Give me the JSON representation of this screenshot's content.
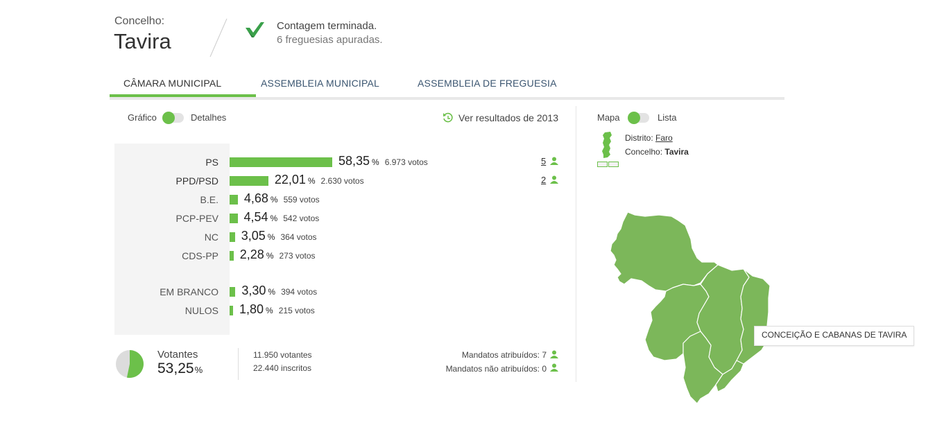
{
  "header": {
    "municipality_label": "Concelho:",
    "municipality_name": "Tavira",
    "status_title": "Contagem terminada.",
    "status_sub": "6 freguesias apuradas.",
    "check_color": "#3aa04a"
  },
  "tabs": [
    {
      "label": "CÂMARA MUNICIPAL",
      "active": true
    },
    {
      "label": "ASSEMBLEIA MUNICIPAL",
      "active": false
    },
    {
      "label": "ASSEMBLEIA DE FREGUESIA",
      "active": false
    }
  ],
  "view_toggle": {
    "left": "Gráfico",
    "right": "Detalhes"
  },
  "history_link": "Ver resultados de 2013",
  "map_toggle": {
    "left": "Mapa",
    "right": "Lista"
  },
  "location": {
    "district_label": "Distrito:",
    "district_value": "Faro",
    "municipality_label": "Concelho:",
    "municipality_value": "Tavira"
  },
  "results": [
    {
      "party": "PS",
      "pct": "58,35",
      "votes": "6.973 votos",
      "value": 58.35,
      "mandates": "5"
    },
    {
      "party": "PPD/PSD",
      "pct": "22,01",
      "votes": "2.630 votos",
      "value": 22.01,
      "mandates": "2"
    },
    {
      "party": "B.E.",
      "pct": "4,68",
      "votes": "559 votos",
      "value": 4.68
    },
    {
      "party": "PCP-PEV",
      "pct": "4,54",
      "votes": "542 votos",
      "value": 4.54
    },
    {
      "party": "NC",
      "pct": "3,05",
      "votes": "364 votos",
      "value": 3.05
    },
    {
      "party": "CDS-PP",
      "pct": "2,28",
      "votes": "273 votos",
      "value": 2.28
    }
  ],
  "blank_null": [
    {
      "party": "EM BRANCO",
      "pct": "3,30",
      "votes": "394 votos",
      "value": 3.3
    },
    {
      "party": "NULOS",
      "pct": "1,80",
      "votes": "215 votos",
      "value": 1.8
    }
  ],
  "pct_unit": "%",
  "turnout": {
    "label": "Votantes",
    "pct": "53,25",
    "value": 53.25,
    "voters": "11.950 votantes",
    "registered": "22.440 inscritos"
  },
  "mandates_summary": {
    "assigned": "Mandatos atribuídos: 7",
    "unassigned": "Mandatos não atribuídos: 0"
  },
  "map_tooltip": "CONCEIÇÃO E CABANAS DE TAVIRA",
  "colors": {
    "accent": "#6cc04a",
    "map_fill": "#7cb75a",
    "tab_text": "#3a5570"
  }
}
